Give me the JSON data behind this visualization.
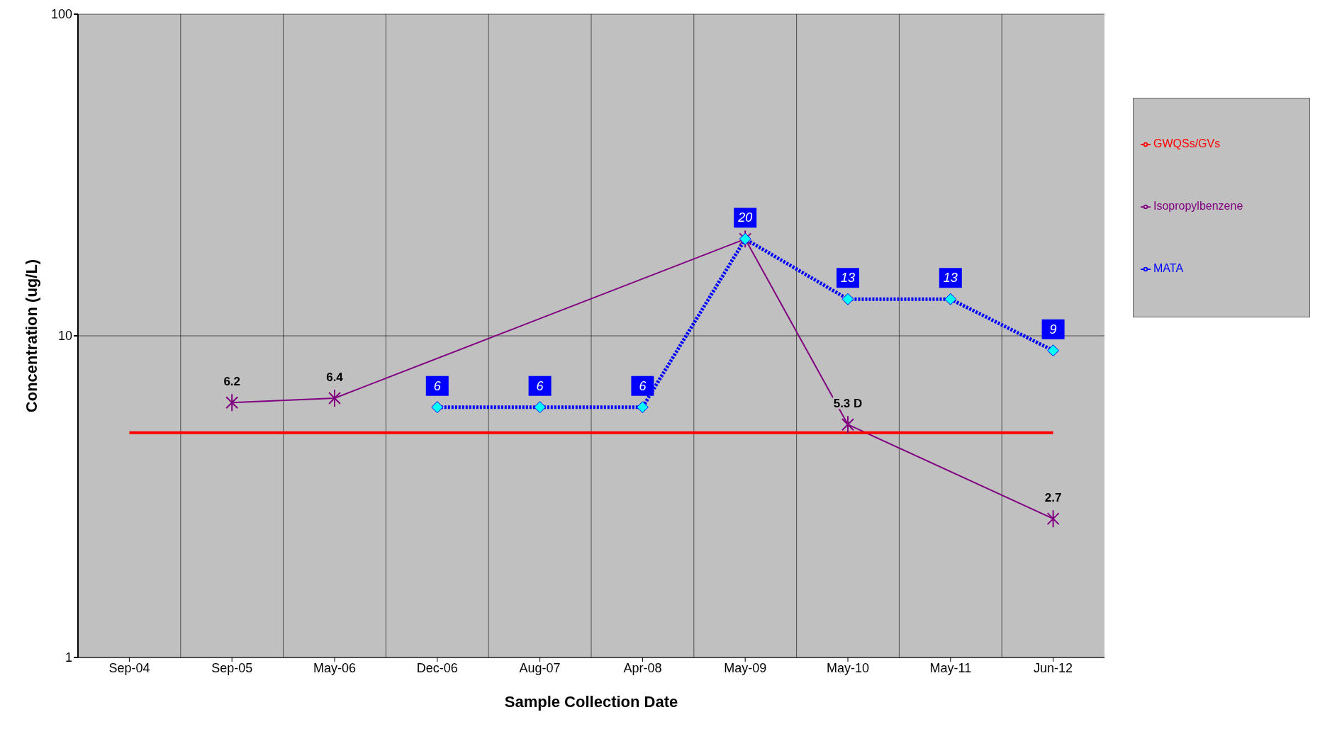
{
  "chart_data": {
    "type": "line",
    "xlabel": "Sample Collection Date",
    "ylabel": "Concentration (ug/L)",
    "categories": [
      "Sep-04",
      "Sep-05",
      "May-06",
      "Dec-06",
      "Aug-07",
      "Apr-08",
      "May-09",
      "May-10",
      "May-11",
      "Jun-12"
    ],
    "series": [
      {
        "name": "Isopropylbenzene",
        "color": "#800080",
        "marker": "cross",
        "line_style": "solid",
        "values": [
          null,
          6.2,
          6.4,
          null,
          null,
          null,
          20,
          5.3,
          null,
          2.7
        ],
        "value_labels": [
          null,
          "6.2",
          "6.4",
          null,
          null,
          null,
          null,
          "5.3 D",
          null,
          "2.7"
        ]
      },
      {
        "name": "GWQSs/GVs",
        "color": "#ff0000",
        "marker": "none",
        "line_style": "solid",
        "values": [
          5,
          5,
          5,
          5,
          5,
          5,
          5,
          5,
          5,
          5
        ]
      },
      {
        "name": "MATA",
        "color": "#0000ff",
        "marker": "diamond",
        "line_style": "dotted",
        "values": [
          null,
          null,
          null,
          6,
          6,
          6,
          20,
          13,
          13,
          9
        ],
        "value_labels": [
          null,
          null,
          null,
          "6",
          "6",
          "6",
          "20",
          "13",
          "13",
          "9"
        ]
      }
    ],
    "log": "y",
    "ylim": [
      1,
      100
    ],
    "yticks": [
      1,
      10,
      100
    ],
    "grid": true,
    "legend": "right"
  }
}
